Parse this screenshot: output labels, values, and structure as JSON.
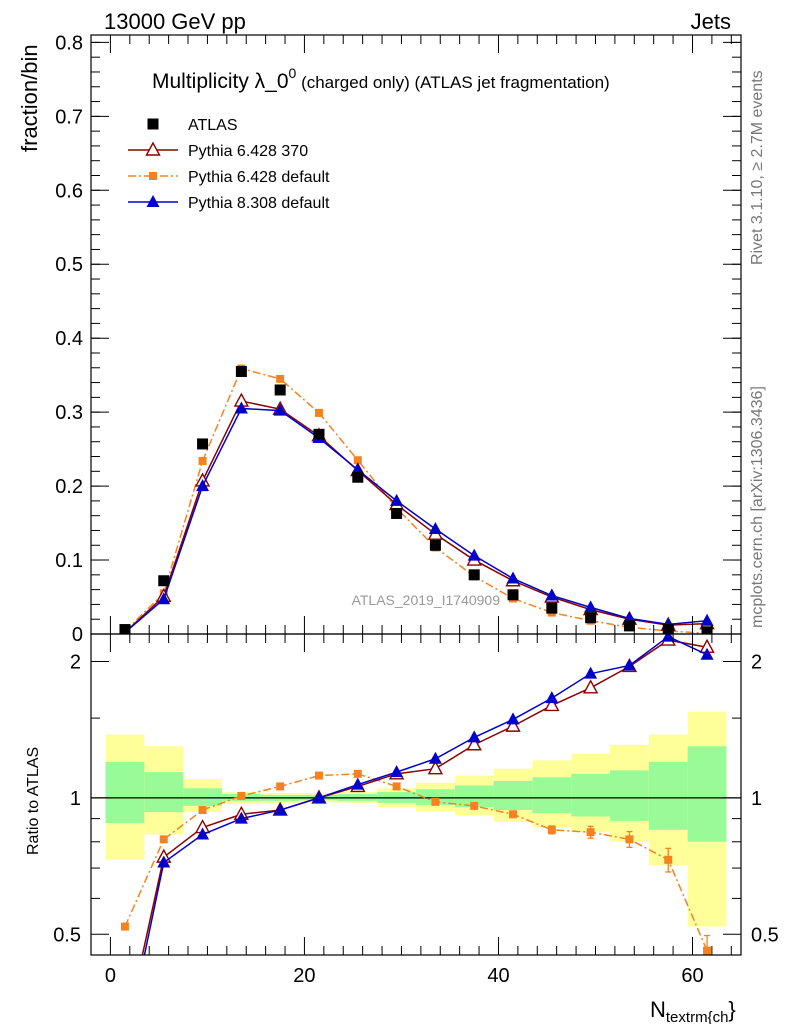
{
  "header": {
    "left_label": "13000 GeV pp",
    "right_label": "Jets"
  },
  "side_labels": {
    "rivet": "Rivet 3.1.10, ≥ 2.7M events",
    "mcplots": "mcplots.cern.ch [arXiv:1306.3436]"
  },
  "chart_data": [
    {
      "type": "line",
      "panel": "main",
      "title_main": "Multiplicity λ_0",
      "title_sup": "0",
      "title_suffix": " (charged only) (ATLAS jet fragmentation)",
      "ylabel": "fraction/bin",
      "analysis_label": "ATLAS_2019_I1740909",
      "xlim": [
        -2,
        65
      ],
      "ylim": [
        0,
        0.81
      ],
      "yticks": [
        0,
        0.1,
        0.2,
        0.3,
        0.4,
        0.5,
        0.6,
        0.7,
        0.8
      ],
      "ytick_labels": [
        "0",
        "0.1",
        "0.2",
        "0.3",
        "0.4",
        "0.5",
        "0.6",
        "0.7",
        "0.8"
      ],
      "legend_position": "top-left",
      "x": [
        1.5,
        5.5,
        9.5,
        13.5,
        17.5,
        21.5,
        25.5,
        29.5,
        33.5,
        37.5,
        41.5,
        45.5,
        49.5,
        53.5,
        57.5,
        61.5
      ],
      "series": [
        {
          "name": "ATLAS",
          "marker": "square",
          "color": "#000000",
          "values": [
            0.006,
            0.072,
            0.257,
            0.355,
            0.33,
            0.27,
            0.212,
            0.163,
            0.12,
            0.08,
            0.053,
            0.035,
            0.022,
            0.011,
            0.006,
            0.003
          ]
        },
        {
          "name": "Pythia 6.428 370",
          "marker": "open-triangle",
          "color": "#8b0000",
          "dash": "",
          "values": [
            0.002,
            0.051,
            0.207,
            0.315,
            0.304,
            0.268,
            0.221,
            0.175,
            0.135,
            0.1,
            0.072,
            0.05,
            0.033,
            0.02,
            0.012,
            0.014
          ]
        },
        {
          "name": "Pythia 6.428 default",
          "marker": "small-square",
          "color": "#f58220",
          "dash": "8,3,2,3",
          "values": [
            0.004,
            0.055,
            0.234,
            0.359,
            0.345,
            0.299,
            0.235,
            0.17,
            0.117,
            0.078,
            0.048,
            0.029,
            0.018,
            0.009,
            0.004,
            0.001
          ]
        },
        {
          "name": "Pythia 8.308 default",
          "marker": "triangle",
          "color": "#0000cc",
          "dash": "",
          "values": [
            0.002,
            0.047,
            0.2,
            0.305,
            0.302,
            0.265,
            0.222,
            0.18,
            0.142,
            0.106,
            0.075,
            0.052,
            0.036,
            0.021,
            0.013,
            0.018
          ]
        }
      ]
    },
    {
      "type": "line",
      "panel": "ratio",
      "ylabel": "Ratio to ATLAS",
      "xlabel_main": "N",
      "xlabel_sub": "textrm{ch",
      "xlabel_tail": "}",
      "xlim": [
        -2,
        65
      ],
      "ylim": [
        0.45,
        2.3
      ],
      "log_y": true,
      "xticks": [
        0,
        20,
        40,
        60
      ],
      "xtick_labels": [
        "0",
        "20",
        "40",
        "60"
      ],
      "yticks": [
        0.5,
        1,
        2
      ],
      "ytick_labels": [
        "0.5",
        "1",
        "2"
      ],
      "bands": {
        "bin_edges": [
          -0.5,
          3.5,
          7.5,
          11.5,
          15.5,
          19.5,
          23.5,
          27.5,
          31.5,
          35.5,
          39.5,
          43.5,
          47.5,
          51.5,
          55.5,
          59.5,
          63.5
        ],
        "green_color": "#98fb98",
        "yellow_color": "#ffff99",
        "green_lo": [
          0.88,
          0.93,
          0.96,
          0.985,
          0.985,
          0.988,
          0.985,
          0.975,
          0.965,
          0.955,
          0.94,
          0.925,
          0.91,
          0.89,
          0.85,
          0.8
        ],
        "green_hi": [
          1.2,
          1.14,
          1.05,
          1.02,
          1.015,
          1.015,
          1.02,
          1.03,
          1.045,
          1.065,
          1.09,
          1.11,
          1.13,
          1.15,
          1.2,
          1.3
        ],
        "yellow_lo": [
          0.73,
          0.83,
          0.93,
          0.97,
          0.975,
          0.978,
          0.975,
          0.955,
          0.935,
          0.915,
          0.885,
          0.86,
          0.84,
          0.8,
          0.71,
          0.52
        ],
        "yellow_hi": [
          1.38,
          1.3,
          1.1,
          1.03,
          1.025,
          1.025,
          1.03,
          1.05,
          1.08,
          1.12,
          1.16,
          1.21,
          1.25,
          1.31,
          1.38,
          1.55
        ]
      },
      "x": [
        1.5,
        5.5,
        9.5,
        13.5,
        17.5,
        21.5,
        25.5,
        29.5,
        33.5,
        37.5,
        41.5,
        45.5,
        49.5,
        53.5,
        57.5,
        61.5
      ],
      "series": [
        {
          "name": "Pythia 6.428 370",
          "marker": "open-triangle",
          "color": "#8b0000",
          "dash": "",
          "values": [
            0.3,
            0.74,
            0.86,
            0.92,
            0.94,
            1.0,
            1.06,
            1.13,
            1.16,
            1.31,
            1.44,
            1.6,
            1.75,
            1.95,
            2.23,
            2.15
          ]
        },
        {
          "name": "Pythia 6.428 default",
          "marker": "small-square",
          "color": "#f58220",
          "dash": "8,3,2,3",
          "values": [
            0.52,
            0.81,
            0.94,
            1.01,
            1.06,
            1.12,
            1.13,
            1.06,
            0.98,
            0.96,
            0.92,
            0.85,
            0.84,
            0.81,
            0.73,
            0.46
          ]
        },
        {
          "name": "Pythia 8.308 default",
          "marker": "triangle",
          "color": "#0000cc",
          "dash": "",
          "values": [
            0.28,
            0.72,
            0.83,
            0.9,
            0.94,
            1.0,
            1.07,
            1.14,
            1.22,
            1.36,
            1.49,
            1.66,
            1.88,
            1.96,
            2.27,
            2.07
          ]
        }
      ],
      "error_bars": {
        "series_index": 1,
        "rel": [
          0,
          0,
          0,
          0,
          0,
          0,
          0,
          0,
          0,
          0,
          0,
          0.02,
          0.03,
          0.04,
          0.06,
          0.08
        ]
      }
    }
  ]
}
